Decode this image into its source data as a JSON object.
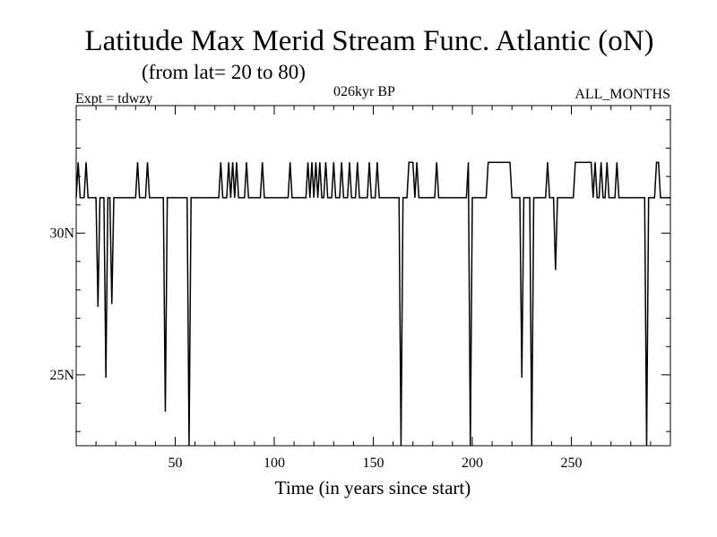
{
  "chart_data": {
    "type": "line",
    "title": "Latitude Max Merid Stream Func. Atlantic (oN)",
    "subtitle": "(from lat= 20 to 80)",
    "experiment_label": "Expt = tdwzy",
    "period_label": "026kyr BP",
    "months_label": "ALL_MONTHS",
    "xlabel": "Time (in years since start)",
    "ylabel": "",
    "xlim": [
      0,
      300
    ],
    "ylim": [
      22.5,
      34.5
    ],
    "x_ticks": [
      50,
      100,
      150,
      200,
      250
    ],
    "x_tick_labels": [
      "50",
      "100",
      "150",
      "200",
      "250"
    ],
    "y_ticks": [
      25,
      30
    ],
    "y_tick_labels": [
      "25N",
      "30N"
    ],
    "grid": false,
    "series": [
      {
        "baseline": 31.25,
        "upper_level": 32.5,
        "upper_spikes_years": [
          1,
          5,
          31,
          36,
          73,
          77,
          79,
          81,
          86,
          94,
          108,
          117,
          119,
          121,
          123,
          126,
          130,
          134,
          138,
          142,
          148,
          152,
          168,
          169,
          170,
          172,
          182,
          198,
          208,
          209,
          210,
          211,
          212,
          213,
          214,
          215,
          216,
          217,
          218,
          219,
          238,
          252,
          253,
          254,
          255,
          256,
          257,
          258,
          259,
          260,
          262,
          265,
          268,
          273,
          293,
          294
        ],
        "dips": [
          {
            "year": 11,
            "value": 27.4
          },
          {
            "year": 15,
            "value": 24.9
          },
          {
            "year": 18,
            "value": 27.5
          },
          {
            "year": 45,
            "value": 23.7
          },
          {
            "year": 57,
            "value": 22.5
          },
          {
            "year": 164,
            "value": 22.5
          },
          {
            "year": 199,
            "value": 22.5
          },
          {
            "year": 225,
            "value": 24.9
          },
          {
            "year": 230,
            "value": 22.5
          },
          {
            "year": 242,
            "value": 28.7
          },
          {
            "year": 288,
            "value": 22.5
          }
        ]
      }
    ]
  }
}
